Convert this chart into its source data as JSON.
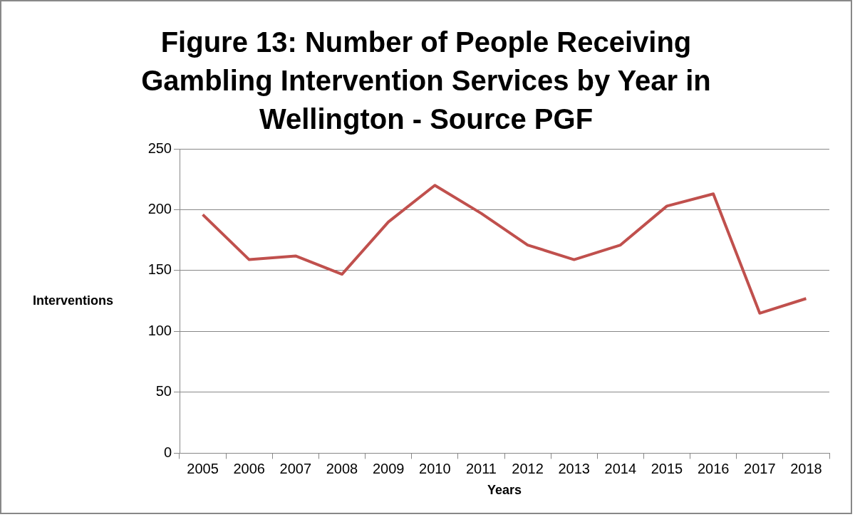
{
  "chart_data": {
    "type": "line",
    "title": "Figure 13: Number of People Receiving Gambling Intervention Services by Year in Wellington  - Source PGF",
    "xlabel": "Years",
    "ylabel": "Interventions",
    "categories": [
      "2005",
      "2006",
      "2007",
      "2008",
      "2009",
      "2010",
      "2011",
      "2012",
      "2013",
      "2014",
      "2015",
      "2016",
      "2017",
      "2018"
    ],
    "series": [
      {
        "color": "#c0504d",
        "values": [
          196,
          159,
          162,
          147,
          190,
          220,
          197,
          171,
          159,
          171,
          203,
          213,
          115,
          127
        ]
      }
    ],
    "ylim": [
      0,
      250
    ],
    "yticks": [
      0,
      50,
      100,
      150,
      200,
      250
    ],
    "grid": "y",
    "legend": false,
    "marker": "none",
    "line_style": "solid"
  }
}
